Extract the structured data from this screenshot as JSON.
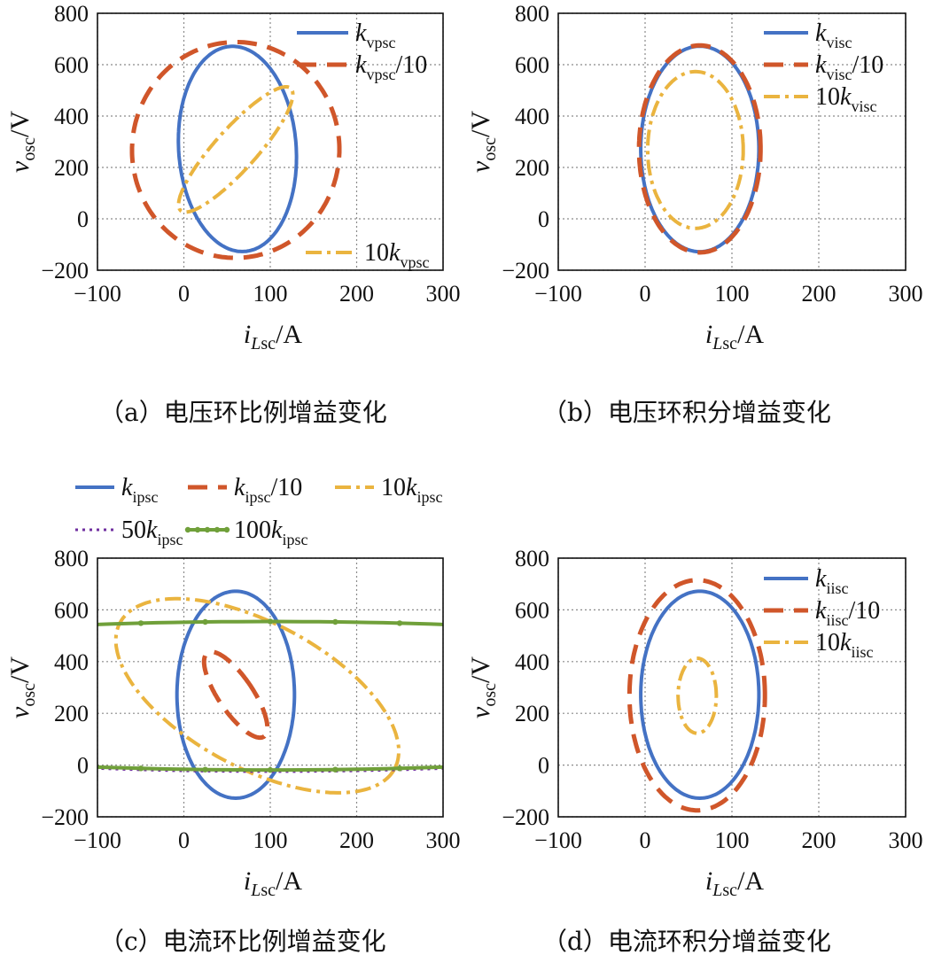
{
  "panels": [
    {
      "id": "a",
      "caption": "（a）电压环比例增益变化",
      "xlabel": {
        "main": "i",
        "sub": "Lsc",
        "unit": "/A"
      },
      "ylabel": {
        "main": "v",
        "sub": "osc",
        "unit": "/V"
      },
      "xticks": [
        "−100",
        "0",
        "100",
        "200",
        "300"
      ],
      "yticks": [
        "−200",
        "0",
        "200",
        "400",
        "600",
        "800"
      ],
      "legend": [
        {
          "prefix": "",
          "main": "k",
          "sub": "vpsc",
          "suffix": ""
        },
        {
          "prefix": "",
          "main": "k",
          "sub": "vpsc",
          "suffix": "/10"
        },
        {
          "prefix": "10",
          "main": "k",
          "sub": "vpsc",
          "suffix": ""
        }
      ]
    },
    {
      "id": "b",
      "caption": "（b）电压环积分增益变化",
      "xlabel": {
        "main": "i",
        "sub": "Lsc",
        "unit": "/A"
      },
      "ylabel": {
        "main": "v",
        "sub": "osc",
        "unit": "/V"
      },
      "xticks": [
        "−100",
        "0",
        "100",
        "200",
        "300"
      ],
      "yticks": [
        "−200",
        "0",
        "200",
        "400",
        "600",
        "800"
      ],
      "legend": [
        {
          "prefix": "",
          "main": "k",
          "sub": "visc",
          "suffix": ""
        },
        {
          "prefix": "",
          "main": "k",
          "sub": "visc",
          "suffix": "/10"
        },
        {
          "prefix": "10",
          "main": "k",
          "sub": "visc",
          "suffix": ""
        }
      ]
    },
    {
      "id": "c",
      "caption": "（c）电流环比例增益变化",
      "xlabel": {
        "main": "i",
        "sub": "Lsc",
        "unit": "/A"
      },
      "ylabel": {
        "main": "v",
        "sub": "osc",
        "unit": "/V"
      },
      "xticks": [
        "−100",
        "0",
        "100",
        "200",
        "300"
      ],
      "yticks": [
        "−200",
        "0",
        "200",
        "400",
        "600",
        "800"
      ],
      "legend": [
        {
          "prefix": "",
          "main": "k",
          "sub": "ipsc",
          "suffix": ""
        },
        {
          "prefix": "",
          "main": "k",
          "sub": "ipsc",
          "suffix": "/10"
        },
        {
          "prefix": "10",
          "main": "k",
          "sub": "ipsc",
          "suffix": ""
        },
        {
          "prefix": "50",
          "main": "k",
          "sub": "ipsc",
          "suffix": ""
        },
        {
          "prefix": "100",
          "main": "k",
          "sub": "ipsc",
          "suffix": ""
        }
      ]
    },
    {
      "id": "d",
      "caption": "（d）电流环积分增益变化",
      "xlabel": {
        "main": "i",
        "sub": "Lsc",
        "unit": "/A"
      },
      "ylabel": {
        "main": "v",
        "sub": "osc",
        "unit": "/V"
      },
      "xticks": [
        "−100",
        "0",
        "100",
        "200",
        "300"
      ],
      "yticks": [
        "−200",
        "0",
        "200",
        "400",
        "600",
        "800"
      ],
      "legend": [
        {
          "prefix": "",
          "main": "k",
          "sub": "iisc",
          "suffix": ""
        },
        {
          "prefix": "",
          "main": "k",
          "sub": "iisc",
          "suffix": "/10"
        },
        {
          "prefix": "10",
          "main": "k",
          "sub": "iisc",
          "suffix": ""
        }
      ]
    }
  ],
  "colors": {
    "blue": "#4472c4",
    "orange": "#d0562a",
    "gold": "#eab43f",
    "purple": "#7030a0",
    "green": "#70a03a"
  },
  "chart_data": [
    {
      "type": "line",
      "panel": "a",
      "title": "（a）电压环比例增益变化",
      "xlabel": "iLsc/A",
      "ylabel": "vosc/V",
      "xlim": [
        -100,
        300
      ],
      "ylim": [
        -200,
        800
      ],
      "grid": true,
      "legend_position": "top-right",
      "series": [
        {
          "name": "kvpsc",
          "style": "solid",
          "color": "#4472c4",
          "shape": "ellipse",
          "center": [
            62,
            272
          ],
          "radii": [
            68,
            400
          ],
          "tilt_deg": 4
        },
        {
          "name": "kvpsc/10",
          "style": "dashed",
          "color": "#d0562a",
          "shape": "ellipse",
          "center": [
            60,
            268
          ],
          "radii": [
            120,
            420
          ],
          "tilt_deg": -3
        },
        {
          "name": "10kvpsc",
          "style": "dashdot",
          "color": "#eab43f",
          "shape": "ellipse",
          "center": [
            60,
            270
          ],
          "radii": [
            24,
            320
          ],
          "tilt_deg": -42
        }
      ]
    },
    {
      "type": "line",
      "panel": "b",
      "title": "（b）电压环积分增益变化",
      "xlabel": "iLsc/A",
      "ylabel": "vosc/V",
      "xlim": [
        -100,
        300
      ],
      "ylim": [
        -200,
        800
      ],
      "grid": true,
      "legend_position": "top-right",
      "series": [
        {
          "name": "kvisc",
          "style": "solid",
          "color": "#4472c4",
          "shape": "ellipse",
          "center": [
            63,
            272
          ],
          "radii": [
            68,
            400
          ],
          "tilt_deg": 0
        },
        {
          "name": "kvisc/10",
          "style": "dashed",
          "color": "#d0562a",
          "shape": "ellipse",
          "center": [
            63,
            272
          ],
          "radii": [
            70,
            403
          ],
          "tilt_deg": 0
        },
        {
          "name": "10kvisc",
          "style": "dashdot",
          "color": "#eab43f",
          "shape": "ellipse",
          "center": [
            58,
            268
          ],
          "radii": [
            55,
            305
          ],
          "tilt_deg": 0
        }
      ]
    },
    {
      "type": "line",
      "panel": "c",
      "title": "（c）电流环比例增益变化",
      "xlabel": "iLsc/A",
      "ylabel": "vosc/V",
      "xlim": [
        -100,
        300
      ],
      "ylim": [
        -200,
        800
      ],
      "grid": true,
      "legend_position": "top (outside)",
      "series": [
        {
          "name": "kipsc",
          "style": "solid",
          "color": "#4472c4",
          "shape": "ellipse",
          "center": [
            60,
            272
          ],
          "radii": [
            68,
            400
          ],
          "tilt_deg": 0
        },
        {
          "name": "kipsc/10",
          "style": "dashed",
          "color": "#d0562a",
          "shape": "ellipse",
          "center": [
            60,
            272
          ],
          "radii": [
            20,
            195
          ],
          "tilt_deg": 34
        },
        {
          "name": "10kipsc",
          "style": "dashdot",
          "color": "#eab43f",
          "shape": "ellipse",
          "center": [
            85,
            268
          ],
          "radii": [
            180,
            280
          ],
          "tilt_deg": -28
        },
        {
          "name": "50kipsc",
          "style": "dotted",
          "color": "#7030a0",
          "shape": "ellipse",
          "center": [
            100,
            265
          ],
          "radii": [
            700,
            290
          ],
          "tilt_deg": 0
        },
        {
          "name": "100kipsc",
          "style": "solid-marker",
          "color": "#70a03a",
          "shape": "ellipse",
          "center": [
            100,
            268
          ],
          "radii": [
            720,
            287
          ],
          "tilt_deg": 0
        }
      ]
    },
    {
      "type": "line",
      "panel": "d",
      "title": "（d）电流环积分增益变化",
      "xlabel": "iLsc/A",
      "ylabel": "vosc/V",
      "xlim": [
        -100,
        300
      ],
      "ylim": [
        -200,
        800
      ],
      "grid": true,
      "legend_position": "top-right",
      "series": [
        {
          "name": "kiisc",
          "style": "solid",
          "color": "#4472c4",
          "shape": "ellipse",
          "center": [
            63,
            272
          ],
          "radii": [
            68,
            400
          ],
          "tilt_deg": 0
        },
        {
          "name": "kiisc/10",
          "style": "dashed",
          "color": "#d0562a",
          "shape": "ellipse",
          "center": [
            60,
            270
          ],
          "radii": [
            78,
            445
          ],
          "tilt_deg": 0
        },
        {
          "name": "10kiisc",
          "style": "dashdot",
          "color": "#eab43f",
          "shape": "ellipse",
          "center": [
            60,
            268
          ],
          "radii": [
            22,
            145
          ],
          "tilt_deg": 0
        }
      ]
    }
  ]
}
